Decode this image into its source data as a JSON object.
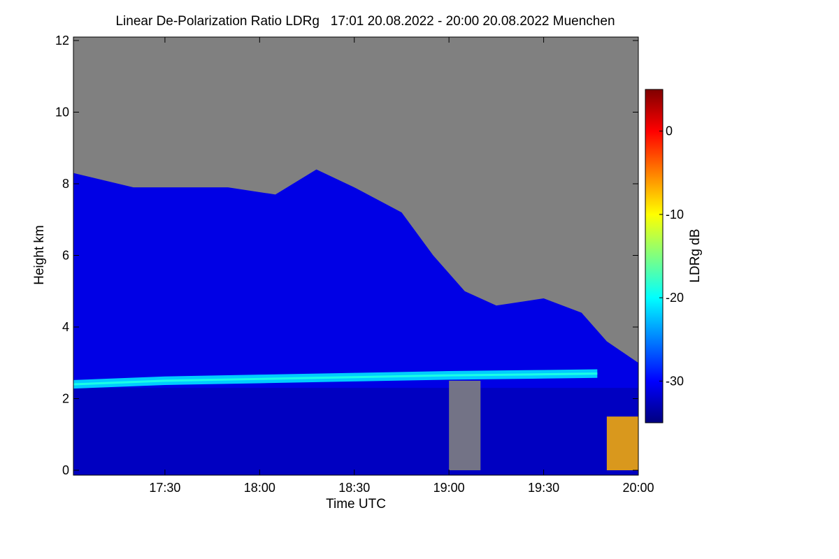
{
  "chart_data": {
    "type": "heatmap",
    "title": "Linear De-Polarization Ratio LDRg   17:01 20.08.2022 - 20:00 20.08.2022 Muenchen",
    "xlabel": "Time UTC",
    "ylabel": "Height km",
    "xlim": [
      "17:01",
      "20:00"
    ],
    "ylim": [
      0,
      12
    ],
    "x_ticks": [
      "17:30",
      "18:00",
      "18:30",
      "19:00",
      "19:30",
      "20:00"
    ],
    "y_ticks": [
      "0",
      "2",
      "4",
      "6",
      "8",
      "10",
      "12"
    ],
    "colorbar": {
      "label": "LDRg dB",
      "range": [
        -35,
        5
      ],
      "ticks": [
        "0",
        "-10",
        "-20",
        "-30"
      ],
      "colors": [
        "#00007f",
        "#0000ff",
        "#0080ff",
        "#00ffff",
        "#80ff80",
        "#ffff00",
        "#ff8000",
        "#ff0000",
        "#800000"
      ]
    },
    "no_data_color": "#808080",
    "signal_top_km": [
      {
        "time": "17:01",
        "height_km": 8.3
      },
      {
        "time": "17:20",
        "height_km": 7.9
      },
      {
        "time": "17:50",
        "height_km": 7.9
      },
      {
        "time": "18:05",
        "height_km": 7.7
      },
      {
        "time": "18:18",
        "height_km": 8.4
      },
      {
        "time": "18:30",
        "height_km": 7.9
      },
      {
        "time": "18:45",
        "height_km": 7.2
      },
      {
        "time": "18:55",
        "height_km": 6.0
      },
      {
        "time": "19:05",
        "height_km": 5.0
      },
      {
        "time": "19:15",
        "height_km": 4.6
      },
      {
        "time": "19:30",
        "height_km": 4.8
      },
      {
        "time": "19:42",
        "height_km": 4.4
      },
      {
        "time": "19:50",
        "height_km": 3.6
      },
      {
        "time": "20:00",
        "height_km": 3.0
      }
    ],
    "layer": {
      "description": "enhanced LDR layer",
      "points": [
        {
          "time": "17:01",
          "height_km": 2.4
        },
        {
          "time": "17:30",
          "height_km": 2.5
        },
        {
          "time": "18:00",
          "height_km": 2.55
        },
        {
          "time": "18:30",
          "height_km": 2.6
        },
        {
          "time": "19:00",
          "height_km": 2.65
        },
        {
          "time": "19:30",
          "height_km": 2.68
        },
        {
          "time": "19:47",
          "height_km": 2.7
        }
      ],
      "ldr_db": -22
    },
    "background_ldr_db": -31,
    "near_surface_ldr_db": -7
  }
}
